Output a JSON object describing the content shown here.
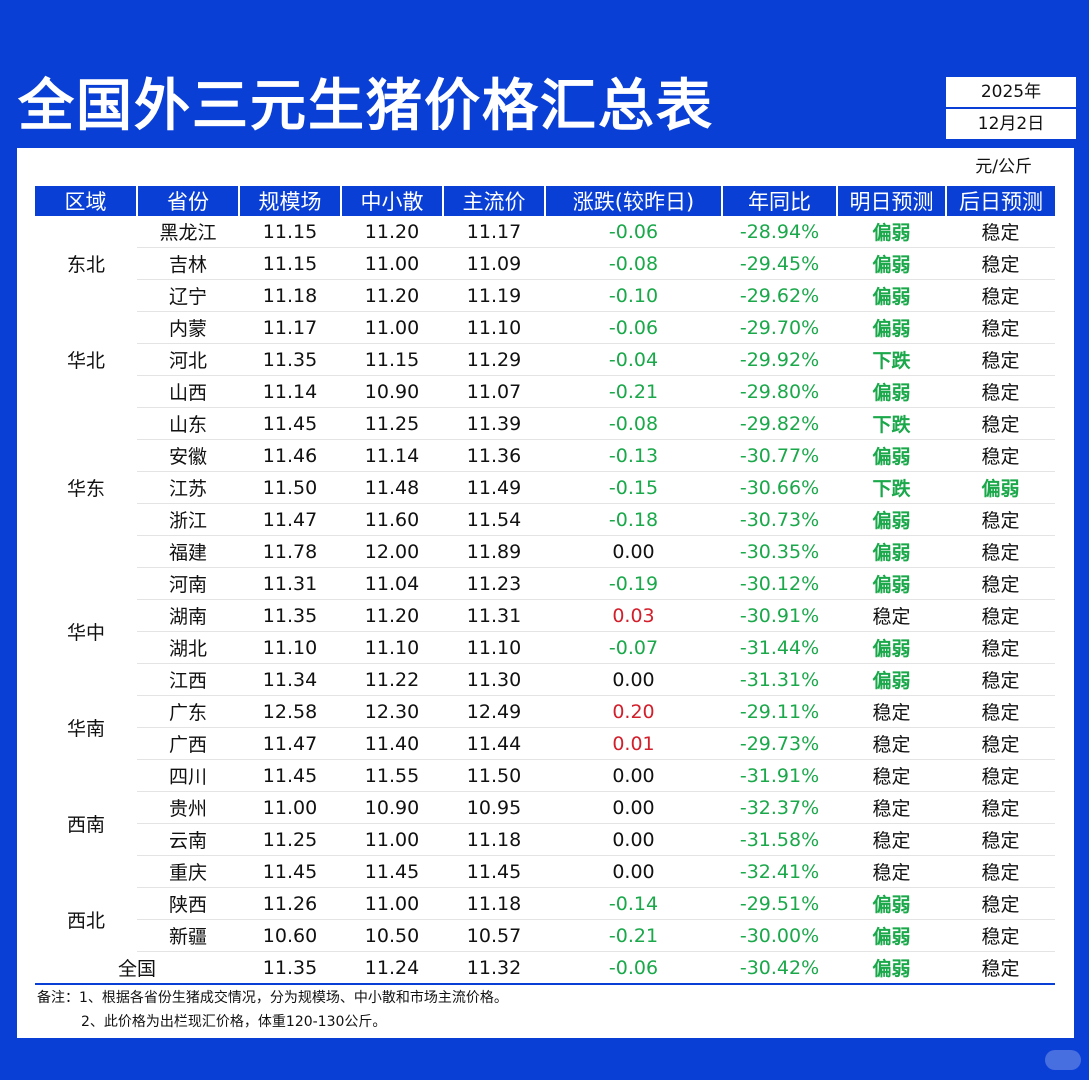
{
  "title": "全国外三元生猪价格汇总表",
  "date": {
    "year": "2025年",
    "month_day": "12月2日"
  },
  "unit": "元/公斤",
  "columns": [
    "区域",
    "省份",
    "规模场",
    "中小散",
    "主流价",
    "涨跌(较昨日)",
    "年同比",
    "明日预测",
    "后日预测"
  ],
  "regions": [
    {
      "name": "东北",
      "rows": 3
    },
    {
      "name": "华北",
      "rows": 3
    },
    {
      "name": "华东",
      "rows": 5
    },
    {
      "name": "华中",
      "rows": 4
    },
    {
      "name": "华南",
      "rows": 2
    },
    {
      "name": "西南",
      "rows": 4
    },
    {
      "name": "西北",
      "rows": 2
    }
  ],
  "rows": [
    {
      "province": "黑龙江",
      "large": "11.15",
      "small": "11.20",
      "main": "11.17",
      "change": "-0.06",
      "yoy": "-28.94%",
      "tomorrow": "偏弱",
      "after": "稳定"
    },
    {
      "province": "吉林",
      "large": "11.15",
      "small": "11.00",
      "main": "11.09",
      "change": "-0.08",
      "yoy": "-29.45%",
      "tomorrow": "偏弱",
      "after": "稳定"
    },
    {
      "province": "辽宁",
      "large": "11.18",
      "small": "11.20",
      "main": "11.19",
      "change": "-0.10",
      "yoy": "-29.62%",
      "tomorrow": "偏弱",
      "after": "稳定"
    },
    {
      "province": "内蒙",
      "large": "11.17",
      "small": "11.00",
      "main": "11.10",
      "change": "-0.06",
      "yoy": "-29.70%",
      "tomorrow": "偏弱",
      "after": "稳定"
    },
    {
      "province": "河北",
      "large": "11.35",
      "small": "11.15",
      "main": "11.29",
      "change": "-0.04",
      "yoy": "-29.92%",
      "tomorrow": "下跌",
      "after": "稳定"
    },
    {
      "province": "山西",
      "large": "11.14",
      "small": "10.90",
      "main": "11.07",
      "change": "-0.21",
      "yoy": "-29.80%",
      "tomorrow": "偏弱",
      "after": "稳定"
    },
    {
      "province": "山东",
      "large": "11.45",
      "small": "11.25",
      "main": "11.39",
      "change": "-0.08",
      "yoy": "-29.82%",
      "tomorrow": "下跌",
      "after": "稳定"
    },
    {
      "province": "安徽",
      "large": "11.46",
      "small": "11.14",
      "main": "11.36",
      "change": "-0.13",
      "yoy": "-30.77%",
      "tomorrow": "偏弱",
      "after": "稳定"
    },
    {
      "province": "江苏",
      "large": "11.50",
      "small": "11.48",
      "main": "11.49",
      "change": "-0.15",
      "yoy": "-30.66%",
      "tomorrow": "下跌",
      "after": "偏弱"
    },
    {
      "province": "浙江",
      "large": "11.47",
      "small": "11.60",
      "main": "11.54",
      "change": "-0.18",
      "yoy": "-30.73%",
      "tomorrow": "偏弱",
      "after": "稳定"
    },
    {
      "province": "福建",
      "large": "11.78",
      "small": "12.00",
      "main": "11.89",
      "change": "0.00",
      "yoy": "-30.35%",
      "tomorrow": "偏弱",
      "after": "稳定"
    },
    {
      "province": "河南",
      "large": "11.31",
      "small": "11.04",
      "main": "11.23",
      "change": "-0.19",
      "yoy": "-30.12%",
      "tomorrow": "偏弱",
      "after": "稳定"
    },
    {
      "province": "湖南",
      "large": "11.35",
      "small": "11.20",
      "main": "11.31",
      "change": "0.03",
      "yoy": "-30.91%",
      "tomorrow": "稳定",
      "after": "稳定"
    },
    {
      "province": "湖北",
      "large": "11.10",
      "small": "11.10",
      "main": "11.10",
      "change": "-0.07",
      "yoy": "-31.44%",
      "tomorrow": "偏弱",
      "after": "稳定"
    },
    {
      "province": "江西",
      "large": "11.34",
      "small": "11.22",
      "main": "11.30",
      "change": "0.00",
      "yoy": "-31.31%",
      "tomorrow": "偏弱",
      "after": "稳定"
    },
    {
      "province": "广东",
      "large": "12.58",
      "small": "12.30",
      "main": "12.49",
      "change": "0.20",
      "yoy": "-29.11%",
      "tomorrow": "稳定",
      "after": "稳定"
    },
    {
      "province": "广西",
      "large": "11.47",
      "small": "11.40",
      "main": "11.44",
      "change": "0.01",
      "yoy": "-29.73%",
      "tomorrow": "稳定",
      "after": "稳定"
    },
    {
      "province": "四川",
      "large": "11.45",
      "small": "11.55",
      "main": "11.50",
      "change": "0.00",
      "yoy": "-31.91%",
      "tomorrow": "稳定",
      "after": "稳定"
    },
    {
      "province": "贵州",
      "large": "11.00",
      "small": "10.90",
      "main": "10.95",
      "change": "0.00",
      "yoy": "-32.37%",
      "tomorrow": "稳定",
      "after": "稳定"
    },
    {
      "province": "云南",
      "large": "11.25",
      "small": "11.00",
      "main": "11.18",
      "change": "0.00",
      "yoy": "-31.58%",
      "tomorrow": "稳定",
      "after": "稳定"
    },
    {
      "province": "重庆",
      "large": "11.45",
      "small": "11.45",
      "main": "11.45",
      "change": "0.00",
      "yoy": "-32.41%",
      "tomorrow": "稳定",
      "after": "稳定"
    },
    {
      "province": "陕西",
      "large": "11.26",
      "small": "11.00",
      "main": "11.18",
      "change": "-0.14",
      "yoy": "-29.51%",
      "tomorrow": "偏弱",
      "after": "稳定"
    },
    {
      "province": "新疆",
      "large": "10.60",
      "small": "10.50",
      "main": "10.57",
      "change": "-0.21",
      "yoy": "-30.00%",
      "tomorrow": "偏弱",
      "after": "稳定"
    }
  ],
  "national": {
    "label": "全国",
    "large": "11.35",
    "small": "11.24",
    "main": "11.32",
    "change": "-0.06",
    "yoy": "-30.42%",
    "tomorrow": "偏弱",
    "after": "稳定"
  },
  "notes": [
    "备注：1、根据各省份生猪成交情况，分为规模场、中小散和市场主流价格。",
    "2、此价格为出栏现汇价格，体重120-130公斤。"
  ],
  "colors": {
    "brand_blue": "#0a3fd6",
    "up_red": "#d21f2b",
    "down_green": "#1aa84a"
  }
}
